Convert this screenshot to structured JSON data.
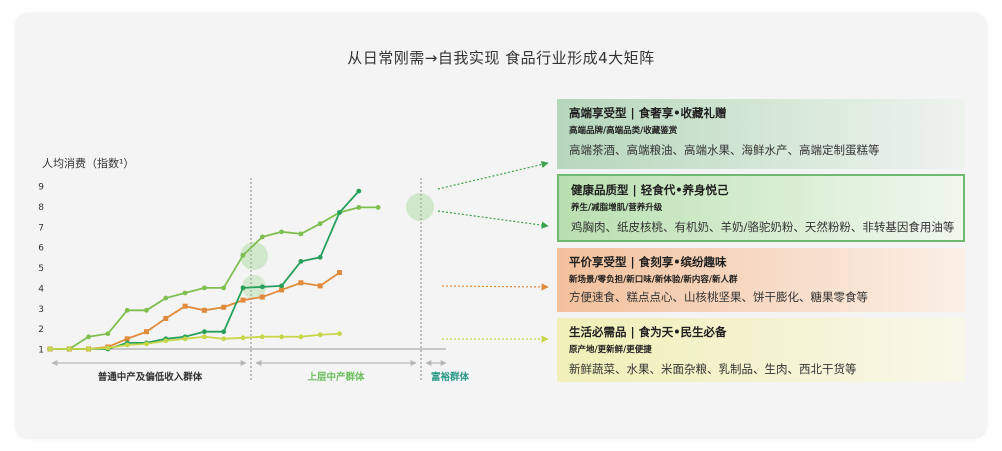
{
  "title": "从日常刚需→自我实现   食品行业形成4大矩阵",
  "chart_data": {
    "type": "line",
    "ylabel": "人均消费（指数¹）",
    "ylim": [
      1,
      9
    ],
    "yticks": [
      "1",
      "2",
      "3",
      "4",
      "5",
      "6",
      "7",
      "8",
      "9"
    ],
    "x": [
      0,
      1,
      2,
      3,
      4,
      5,
      6,
      7,
      8,
      9,
      10,
      11,
      12,
      13,
      14,
      15,
      16,
      17,
      18,
      19,
      20
    ],
    "segments": [
      {
        "label": "普通中产及偏低收入群体",
        "color": "#333333"
      },
      {
        "label": "上层中产群体",
        "color": "#6cbf5e"
      },
      {
        "label": "富裕群体",
        "color": "#2c9a8a"
      }
    ],
    "series": [
      {
        "color": "#7fbf4f",
        "points": [
          [
            0,
            1.0
          ],
          [
            1,
            1.0
          ],
          [
            2,
            1.6
          ],
          [
            3,
            1.75
          ],
          [
            4,
            2.9
          ],
          [
            5,
            2.9
          ],
          [
            6,
            3.5
          ],
          [
            7,
            3.75
          ],
          [
            8,
            4.0
          ],
          [
            9,
            4.0
          ],
          [
            10,
            5.6
          ],
          [
            11,
            6.5
          ],
          [
            12,
            6.75
          ],
          [
            13,
            6.65
          ],
          [
            14,
            7.15
          ],
          [
            15,
            7.7
          ],
          [
            16,
            7.95
          ],
          [
            17,
            7.95
          ]
        ]
      },
      {
        "color": "#e08a3c",
        "points": [
          [
            0,
            1.0
          ],
          [
            1,
            1.0
          ],
          [
            2,
            1.0
          ],
          [
            3,
            1.1
          ],
          [
            4,
            1.5
          ],
          [
            5,
            1.85
          ],
          [
            6,
            2.5
          ],
          [
            7,
            3.1
          ],
          [
            8,
            2.9
          ],
          [
            9,
            3.05
          ],
          [
            10,
            3.4
          ],
          [
            11,
            3.55
          ],
          [
            12,
            3.9
          ],
          [
            13,
            4.25
          ],
          [
            14,
            4.1
          ],
          [
            15,
            4.75
          ]
        ]
      },
      {
        "color": "#28a05c",
        "points": [
          [
            0,
            1.0
          ],
          [
            1,
            1.0
          ],
          [
            2,
            1.0
          ],
          [
            3,
            1.0
          ],
          [
            4,
            1.3
          ],
          [
            5,
            1.3
          ],
          [
            6,
            1.5
          ],
          [
            7,
            1.6
          ],
          [
            8,
            1.85
          ],
          [
            9,
            1.85
          ],
          [
            10,
            4.0
          ],
          [
            11,
            4.05
          ],
          [
            12,
            4.1
          ],
          [
            13,
            5.3
          ],
          [
            14,
            5.5
          ],
          [
            15,
            7.7
          ],
          [
            16,
            8.75
          ]
        ]
      },
      {
        "color": "#c8d74a",
        "points": [
          [
            0,
            1.0
          ],
          [
            1,
            1.0
          ],
          [
            2,
            1.0
          ],
          [
            3,
            1.05
          ],
          [
            4,
            1.2
          ],
          [
            5,
            1.25
          ],
          [
            6,
            1.4
          ],
          [
            7,
            1.5
          ],
          [
            8,
            1.6
          ],
          [
            9,
            1.5
          ],
          [
            10,
            1.55
          ],
          [
            11,
            1.6
          ],
          [
            12,
            1.6
          ],
          [
            13,
            1.6
          ],
          [
            14,
            1.7
          ],
          [
            15,
            1.75
          ]
        ]
      }
    ]
  },
  "panels": [
    {
      "head": "高端享受型 | 食奢享•收藏礼赠",
      "sub": "高端品牌/高端品类/收藏鉴赏",
      "items": "高端茶酒、高端粮油、高端水果、海鲜水产、高端定制蛋糕等"
    },
    {
      "head": "健康品质型 | 轻食代•养身悦己",
      "sub": "养生/减脂增肌/营养升级",
      "items": "鸡胸肉、纸皮核桃、有机奶、羊奶/骆驼奶粉、天然粉粉、非转基因食用油等"
    },
    {
      "head": "平价享受型 | 食刻享•缤纷趣味",
      "sub": "新场景/零负担/新口味/新体验/新内容/新人群",
      "items": "方便速食、糕点点心、山核桃坚果、饼干膨化、糖果零食等"
    },
    {
      "head": "生活必需品 | 食为天•民生必备",
      "sub": "原产地/更新鲜/更便捷",
      "items": "新鲜蔬菜、水果、米面杂粮、乳制品、生肉、西北干货等"
    }
  ]
}
